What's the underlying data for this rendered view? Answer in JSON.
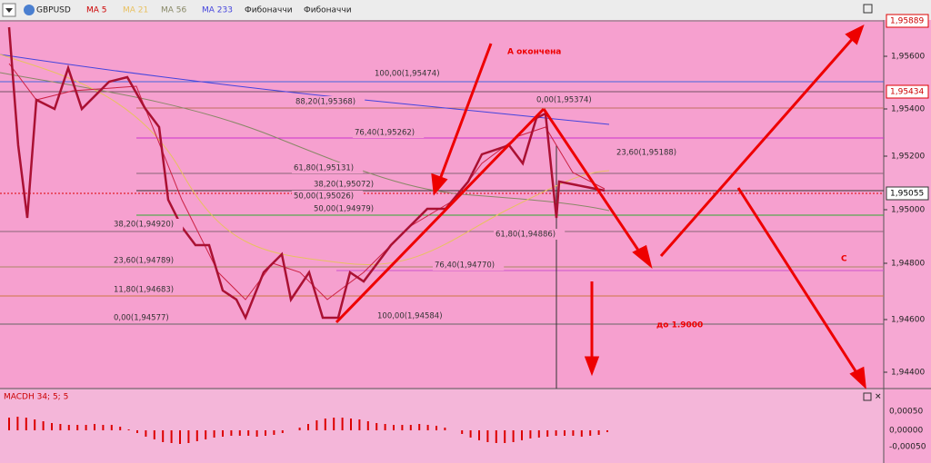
{
  "toolbar": {
    "symbol": "GBPUSD",
    "items": [
      "MA 5",
      "MA 21",
      "MA 56",
      "MA 233",
      "Фибоначчи",
      "Фибоначчи"
    ]
  },
  "price_axis": {
    "labels": [
      "1,95600",
      "1,95400",
      "1,95200",
      "1,95000",
      "1,94800",
      "1,94600",
      "1,94400"
    ],
    "badges": [
      "1,95889",
      "1,95434",
      "1,95055"
    ]
  },
  "fib_labels": [
    "100,00(1,95474)",
    "88,20(1,95368)",
    "0,00(1,95374)",
    "76,40(1,95262)",
    "23,60(1,95188)",
    "61,80(1,95131)",
    "38,20(1,95072)",
    "50,00(1,95026)",
    "50,00(1,94979)",
    "38,20(1,94920)",
    "61,80(1,94886)",
    "23,60(1,94789)",
    "76,40(1,94770)",
    "11,80(1,94683)",
    "0,00(1,94577)",
    "100,00(1,94584)"
  ],
  "annotations": [
    "А окончена",
    "до 1.9000",
    "C"
  ],
  "macd": {
    "title": "MACDH 34; 5; 5",
    "axis_labels": [
      "0,00050",
      "0,00000",
      "-0,00050"
    ]
  }
}
